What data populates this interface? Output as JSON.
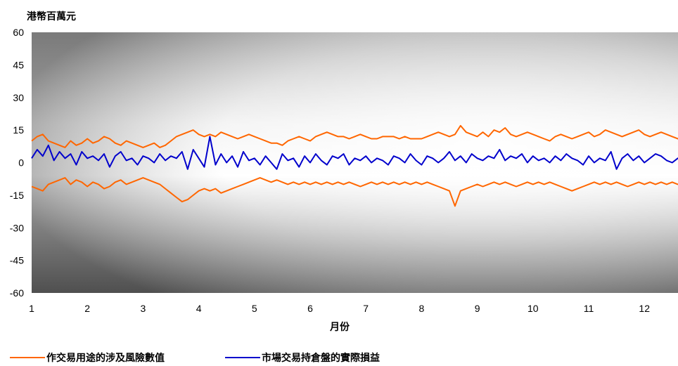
{
  "chart_data": {
    "type": "line",
    "title": "",
    "ylabel": "港幣百萬元",
    "xlabel": "月份",
    "ylim": [
      -60,
      60
    ],
    "yticks": [
      "60",
      "45",
      "30",
      "15",
      "0",
      "-15",
      "-30",
      "-45",
      "-60"
    ],
    "xticks": [
      "1",
      "2",
      "3",
      "4",
      "5",
      "6",
      "7",
      "8",
      "9",
      "10",
      "11",
      "12"
    ],
    "xlim": [
      1,
      12.7
    ],
    "grid": false,
    "legend": "bottom",
    "series": [
      {
        "name": "作交易用途的涉及風險數值",
        "role": "upper",
        "color": "#ff6600",
        "x": [
          1.0,
          1.1,
          1.2,
          1.3,
          1.4,
          1.5,
          1.6,
          1.7,
          1.8,
          1.9,
          2.0,
          2.1,
          2.2,
          2.3,
          2.4,
          2.5,
          2.6,
          2.7,
          2.8,
          2.9,
          3.0,
          3.1,
          3.2,
          3.3,
          3.4,
          3.5,
          3.6,
          3.7,
          3.8,
          3.9,
          4.0,
          4.1,
          4.2,
          4.3,
          4.4,
          4.5,
          4.6,
          4.7,
          4.8,
          4.9,
          5.0,
          5.1,
          5.2,
          5.3,
          5.4,
          5.5,
          5.6,
          5.7,
          5.8,
          5.9,
          6.0,
          6.1,
          6.2,
          6.3,
          6.4,
          6.5,
          6.6,
          6.7,
          6.8,
          6.9,
          7.0,
          7.1,
          7.2,
          7.3,
          7.4,
          7.5,
          7.6,
          7.7,
          7.8,
          7.9,
          8.0,
          8.1,
          8.2,
          8.3,
          8.4,
          8.5,
          8.6,
          8.7,
          8.8,
          8.9,
          9.0,
          9.1,
          9.2,
          9.3,
          9.4,
          9.5,
          9.6,
          9.7,
          9.8,
          9.9,
          10.0,
          10.1,
          10.2,
          10.3,
          10.4,
          10.5,
          10.6,
          10.7,
          10.8,
          10.9,
          11.0,
          11.1,
          11.2,
          11.3,
          11.4,
          11.5,
          11.6,
          11.7,
          11.8,
          11.9,
          12.0,
          12.1,
          12.2,
          12.3,
          12.4,
          12.5,
          12.6,
          12.7
        ],
        "values": [
          10,
          12,
          13,
          10,
          9,
          8,
          7,
          10,
          8,
          9,
          11,
          9,
          10,
          12,
          11,
          9,
          8,
          10,
          9,
          8,
          7,
          8,
          9,
          7,
          8,
          10,
          12,
          13,
          14,
          15,
          13,
          12,
          13,
          12,
          14,
          13,
          12,
          11,
          12,
          13,
          12,
          11,
          10,
          9,
          9,
          8,
          10,
          11,
          12,
          11,
          10,
          12,
          13,
          14,
          13,
          12,
          12,
          11,
          12,
          13,
          12,
          11,
          11,
          12,
          12,
          12,
          11,
          12,
          11,
          11,
          11,
          12,
          13,
          14,
          13,
          12,
          13,
          17,
          14,
          13,
          12,
          14,
          12,
          15,
          14,
          16,
          13,
          12,
          13,
          14,
          13,
          12,
          11,
          10,
          12,
          13,
          12,
          11,
          12,
          13,
          14,
          12,
          13,
          15,
          14,
          13,
          12,
          13,
          14,
          15,
          13,
          12,
          13,
          14,
          13,
          12,
          11,
          10
        ],
        "_note": "upper band"
      },
      {
        "name": "市場交易持倉盤的實際損益",
        "role": "mid",
        "color": "#0000cc",
        "x": [
          1.0,
          1.1,
          1.2,
          1.3,
          1.4,
          1.5,
          1.6,
          1.7,
          1.8,
          1.9,
          2.0,
          2.1,
          2.2,
          2.3,
          2.4,
          2.5,
          2.6,
          2.7,
          2.8,
          2.9,
          3.0,
          3.1,
          3.2,
          3.3,
          3.4,
          3.5,
          3.6,
          3.7,
          3.8,
          3.9,
          4.0,
          4.1,
          4.2,
          4.3,
          4.4,
          4.5,
          4.6,
          4.7,
          4.8,
          4.9,
          5.0,
          5.1,
          5.2,
          5.3,
          5.4,
          5.5,
          5.6,
          5.7,
          5.8,
          5.9,
          6.0,
          6.1,
          6.2,
          6.3,
          6.4,
          6.5,
          6.6,
          6.7,
          6.8,
          6.9,
          7.0,
          7.1,
          7.2,
          7.3,
          7.4,
          7.5,
          7.6,
          7.7,
          7.8,
          7.9,
          8.0,
          8.1,
          8.2,
          8.3,
          8.4,
          8.5,
          8.6,
          8.7,
          8.8,
          8.9,
          9.0,
          9.1,
          9.2,
          9.3,
          9.4,
          9.5,
          9.6,
          9.7,
          9.8,
          9.9,
          10.0,
          10.1,
          10.2,
          10.3,
          10.4,
          10.5,
          10.6,
          10.7,
          10.8,
          10.9,
          11.0,
          11.1,
          11.2,
          11.3,
          11.4,
          11.5,
          11.6,
          11.7,
          11.8,
          11.9,
          12.0,
          12.1,
          12.2,
          12.3,
          12.4,
          12.5,
          12.6,
          12.7
        ],
        "values": [
          2,
          6,
          3,
          8,
          1,
          5,
          2,
          4,
          -1,
          5,
          2,
          3,
          1,
          4,
          -2,
          3,
          5,
          1,
          2,
          -1,
          3,
          2,
          0,
          4,
          1,
          3,
          2,
          5,
          -3,
          6,
          2,
          -2,
          12,
          -1,
          4,
          0,
          3,
          -2,
          5,
          1,
          2,
          -1,
          3,
          0,
          -3,
          4,
          1,
          2,
          -2,
          3,
          0,
          4,
          1,
          -1,
          3,
          2,
          4,
          -1,
          2,
          1,
          3,
          0,
          2,
          1,
          -1,
          3,
          2,
          0,
          4,
          1,
          -1,
          3,
          2,
          0,
          2,
          5,
          1,
          3,
          0,
          4,
          2,
          1,
          3,
          2,
          6,
          1,
          3,
          2,
          4,
          0,
          3,
          1,
          2,
          0,
          3,
          1,
          4,
          2,
          1,
          -1,
          3,
          0,
          2,
          1,
          5,
          -3,
          2,
          4,
          1,
          3,
          0,
          2,
          4,
          3,
          1,
          0,
          2,
          1
        ],
        "_note": "actual P&L"
      },
      {
        "name": "",
        "role": "lower",
        "color": "#ff6600",
        "x": [
          1.0,
          1.1,
          1.2,
          1.3,
          1.4,
          1.5,
          1.6,
          1.7,
          1.8,
          1.9,
          2.0,
          2.1,
          2.2,
          2.3,
          2.4,
          2.5,
          2.6,
          2.7,
          2.8,
          2.9,
          3.0,
          3.1,
          3.2,
          3.3,
          3.4,
          3.5,
          3.6,
          3.7,
          3.8,
          3.9,
          4.0,
          4.1,
          4.2,
          4.3,
          4.4,
          4.5,
          4.6,
          4.7,
          4.8,
          4.9,
          5.0,
          5.1,
          5.2,
          5.3,
          5.4,
          5.5,
          5.6,
          5.7,
          5.8,
          5.9,
          6.0,
          6.1,
          6.2,
          6.3,
          6.4,
          6.5,
          6.6,
          6.7,
          6.8,
          6.9,
          7.0,
          7.1,
          7.2,
          7.3,
          7.4,
          7.5,
          7.6,
          7.7,
          7.8,
          7.9,
          8.0,
          8.1,
          8.2,
          8.3,
          8.4,
          8.5,
          8.6,
          8.7,
          8.8,
          8.9,
          9.0,
          9.1,
          9.2,
          9.3,
          9.4,
          9.5,
          9.6,
          9.7,
          9.8,
          9.9,
          10.0,
          10.1,
          10.2,
          10.3,
          10.4,
          10.5,
          10.6,
          10.7,
          10.8,
          10.9,
          11.0,
          11.1,
          11.2,
          11.3,
          11.4,
          11.5,
          11.6,
          11.7,
          11.8,
          11.9,
          12.0,
          12.1,
          12.2,
          12.3,
          12.4,
          12.5,
          12.6,
          12.7
        ],
        "values": [
          -11,
          -12,
          -13,
          -10,
          -9,
          -8,
          -7,
          -10,
          -8,
          -9,
          -11,
          -9,
          -10,
          -12,
          -11,
          -9,
          -8,
          -10,
          -9,
          -8,
          -7,
          -8,
          -9,
          -10,
          -12,
          -14,
          -16,
          -18,
          -17,
          -15,
          -13,
          -12,
          -13,
          -12,
          -14,
          -13,
          -12,
          -11,
          -10,
          -9,
          -8,
          -7,
          -8,
          -9,
          -8,
          -9,
          -10,
          -9,
          -10,
          -9,
          -10,
          -9,
          -10,
          -9,
          -10,
          -9,
          -10,
          -9,
          -10,
          -11,
          -10,
          -9,
          -10,
          -9,
          -10,
          -9,
          -10,
          -9,
          -10,
          -9,
          -10,
          -9,
          -10,
          -11,
          -12,
          -13,
          -20,
          -13,
          -12,
          -11,
          -10,
          -11,
          -10,
          -9,
          -10,
          -9,
          -10,
          -11,
          -10,
          -9,
          -10,
          -9,
          -10,
          -9,
          -10,
          -11,
          -12,
          -13,
          -12,
          -11,
          -10,
          -9,
          -10,
          -9,
          -10,
          -9,
          -10,
          -11,
          -10,
          -9,
          -10,
          -9,
          -10,
          -9,
          -10,
          -9,
          -10,
          -9
        ],
        "_note": "lower band"
      }
    ]
  },
  "legend": {
    "item1": "作交易用途的涉及風險數值",
    "item2": "市場交易持倉盤的實際損益"
  }
}
